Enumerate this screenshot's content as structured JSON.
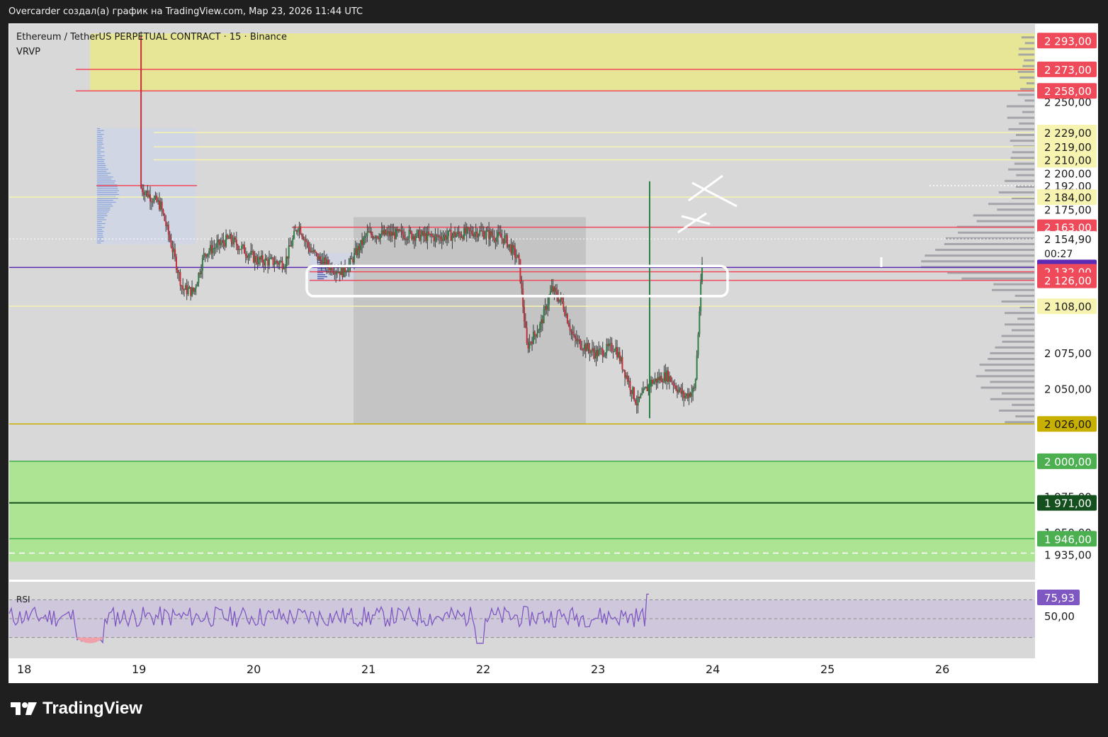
{
  "header": {
    "caption": "Overcarder создал(а) график на TradingView.com, Мар 23, 2026 11:44 UTC"
  },
  "chart": {
    "symbol_line": "Ethereum / TetherUS PERPETUAL CONTRACT · 15 · Binance",
    "indicator": "VRVP",
    "rsi_label": "RSI"
  },
  "footer": {
    "brand": "TradingView"
  },
  "colors": {
    "pane_bg": "#d8d8d8",
    "yellow_zone": "#e6e696",
    "green_zone": "#ace494",
    "red_level": "#ef4a5a",
    "purple_level": "#5b2bb5",
    "yellow_level": "#f6f3b0",
    "gold_level": "#c8b000",
    "green_level": "#3fb04a",
    "dark_green_level": "#14501e",
    "candle": "#3a3a3a",
    "rsi_line": "#7e57c2",
    "rsi_badge": "#7e57c2"
  },
  "chart_data": {
    "type": "candlestick",
    "y_range": [
      1918,
      2305
    ],
    "x_ticks": [
      "18",
      "19",
      "20",
      "21",
      "22",
      "23",
      "24",
      "25",
      "26"
    ],
    "axis_ticks": [
      "2 250,00",
      "2 200,00",
      "2 175,00",
      "2 075,00",
      "2 050,00",
      "1 975,00",
      "1 950,00"
    ],
    "price_levels": [
      {
        "label": "2 293,00",
        "value": 2293,
        "style": "red",
        "line": false
      },
      {
        "label": "2 273,00",
        "value": 2273,
        "style": "red",
        "line": true
      },
      {
        "label": "2 258,00",
        "value": 2258,
        "style": "red",
        "line": true
      },
      {
        "label": "2 229,00",
        "value": 2229,
        "style": "yellow",
        "line": true
      },
      {
        "label": "2 219,00",
        "value": 2219,
        "style": "yellow",
        "line": true
      },
      {
        "label": "2 210,00",
        "value": 2210,
        "style": "yellow",
        "line": true
      },
      {
        "label": "2 192,00",
        "value": 2192,
        "style": "white",
        "line": false
      },
      {
        "label": "2 184,00",
        "value": 2184,
        "style": "yellow",
        "line": true
      },
      {
        "label": "2 163,00",
        "value": 2163,
        "style": "red",
        "line": true
      },
      {
        "label": "2 154,90",
        "value": 2154.9,
        "style": "white",
        "line": false
      },
      {
        "label": "2 135,00",
        "value": 2135,
        "style": "purple",
        "line": true
      },
      {
        "label": "2 132,00",
        "value": 2132,
        "style": "red",
        "line": true
      },
      {
        "label": "2 126,00",
        "value": 2126,
        "style": "red",
        "line": true
      },
      {
        "label": "2 108,00",
        "value": 2108,
        "style": "yellow",
        "line": true
      },
      {
        "label": "2 026,00",
        "value": 2026,
        "style": "gold",
        "line": true
      },
      {
        "label": "2 000,00",
        "value": 2000,
        "style": "green",
        "line": true
      },
      {
        "label": "1 971,00",
        "value": 1971,
        "style": "darkgreen",
        "line": true
      },
      {
        "label": "1 946,00",
        "value": 1946,
        "style": "green",
        "line": true
      },
      {
        "label": "1 935,00",
        "value": 1935,
        "style": "white",
        "line": false
      }
    ],
    "countdown": "00:27",
    "last_price": 2154.9,
    "zones": [
      {
        "name": "supply-zone",
        "from": 2258,
        "to": 2298
      },
      {
        "name": "demand-zone",
        "from": 1930,
        "to": 2000
      }
    ],
    "path": [
      [
        0.0,
        2296
      ],
      [
        0.03,
        2255
      ],
      [
        0.06,
        2215
      ],
      [
        0.1,
        2180
      ],
      [
        0.15,
        2188
      ],
      [
        0.22,
        2192
      ],
      [
        0.3,
        2178
      ],
      [
        0.34,
        2150
      ],
      [
        0.38,
        2120
      ],
      [
        0.42,
        2118
      ],
      [
        0.46,
        2145
      ],
      [
        0.55,
        2155
      ],
      [
        0.65,
        2140
      ],
      [
        0.75,
        2138
      ],
      [
        0.8,
        2165
      ],
      [
        0.84,
        2148
      ],
      [
        0.88,
        2140
      ],
      [
        0.92,
        2135
      ],
      [
        0.96,
        2132
      ],
      [
        0.99,
        2138
      ],
      [
        1.0,
        2142
      ],
      [
        1.05,
        2158
      ],
      [
        1.2,
        2158
      ],
      [
        1.3,
        2156
      ],
      [
        1.45,
        2160
      ],
      [
        1.55,
        2155
      ],
      [
        1.6,
        2140
      ],
      [
        1.63,
        2080
      ],
      [
        1.68,
        2095
      ],
      [
        1.72,
        2120
      ],
      [
        1.76,
        2110
      ],
      [
        1.8,
        2085
      ],
      [
        1.88,
        2075
      ],
      [
        1.95,
        2080
      ],
      [
        1.99,
        2060
      ],
      [
        2.03,
        2040
      ],
      [
        2.08,
        2055
      ],
      [
        2.14,
        2060
      ],
      [
        2.2,
        2045
      ],
      [
        2.24,
        2050
      ],
      [
        2.27,
        2150
      ],
      [
        2.28,
        2155
      ]
    ],
    "rsi": {
      "value": "75,93",
      "value_num": 75.93,
      "mid_label": "50,00",
      "overbought": 70,
      "oversold": 30
    }
  }
}
